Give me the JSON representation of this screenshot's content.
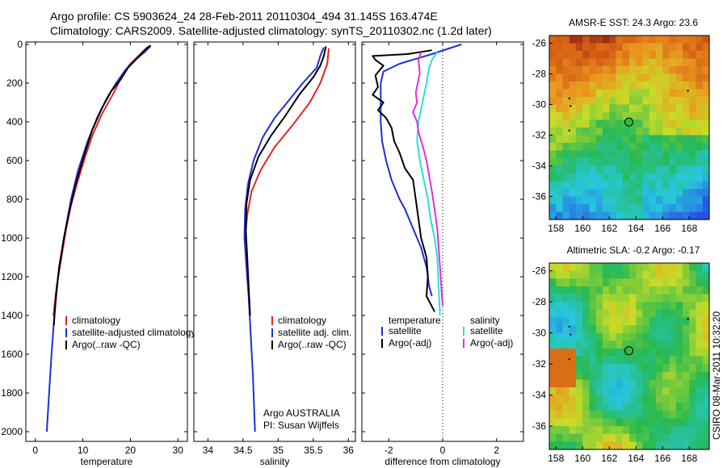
{
  "header": {
    "line1": "Argo profile: CS 5903624_24 28-Feb-2011 20110304_494 31.145S 163.474E",
    "line2": "Climatology: CARS2009. Satellite-adjusted climatology: synTS_20110302.nc (1.2d later)"
  },
  "footer_vertical": "CSIRO 08-Mar-2011 10:32:20",
  "colors": {
    "climatology": "#e8231f",
    "satellite": "#1f2fd8",
    "argo": "#000000",
    "cyan": "#29e0e0",
    "magenta": "#e02ee0"
  },
  "chart_data": [
    {
      "type": "line",
      "xlabel": "temperature",
      "ylabel": "",
      "xlim": [
        -2,
        32
      ],
      "ylim": [
        2050,
        0
      ],
      "xticks": [
        "0",
        "10",
        "20",
        "30"
      ],
      "yticks": [
        "0",
        "200",
        "400",
        "600",
        "800",
        "1000",
        "1200",
        "1400",
        "1600",
        "1800",
        "2000"
      ],
      "legend": [
        "climatology",
        "satellite-adjusted climatology",
        "Argo(..raw -QC)"
      ],
      "series": [
        {
          "name": "climatology",
          "color": "climatology",
          "points": [
            [
              23.8,
              10
            ],
            [
              22.5,
              40
            ],
            [
              20,
              100
            ],
            [
              18.5,
              150
            ],
            [
              16.5,
              250
            ],
            [
              14,
              360
            ],
            [
              12,
              470
            ],
            [
              10.5,
              580
            ],
            [
              9,
              700
            ],
            [
              7.5,
              830
            ],
            [
              6.5,
              950
            ],
            [
              5.5,
              1100
            ],
            [
              4.5,
              1250
            ],
            [
              3.8,
              1400
            ]
          ]
        },
        {
          "name": "satellite-adjusted climatology",
          "color": "satellite",
          "points": [
            [
              24.2,
              10
            ],
            [
              23,
              40
            ],
            [
              21,
              80
            ],
            [
              19,
              130
            ],
            [
              17,
              200
            ],
            [
              15,
              280
            ],
            [
              13,
              380
            ],
            [
              11,
              500
            ],
            [
              9,
              650
            ],
            [
              7.5,
              800
            ],
            [
              6,
              1000
            ],
            [
              4.8,
              1200
            ],
            [
              4,
              1400
            ],
            [
              3.4,
              1600
            ],
            [
              2.9,
              1800
            ],
            [
              2.4,
              2000
            ]
          ]
        },
        {
          "name": "Argo(..raw -QC)",
          "color": "argo",
          "points": [
            [
              24.3,
              5
            ],
            [
              23,
              30
            ],
            [
              21.5,
              70
            ],
            [
              19.5,
              120
            ],
            [
              18,
              180
            ],
            [
              16,
              240
            ],
            [
              14,
              330
            ],
            [
              12,
              440
            ],
            [
              10.3,
              570
            ],
            [
              8.5,
              720
            ],
            [
              7,
              880
            ],
            [
              6,
              1000
            ],
            [
              5,
              1150
            ],
            [
              4.3,
              1300
            ],
            [
              3.9,
              1450
            ]
          ]
        }
      ]
    },
    {
      "type": "line",
      "xlabel": "salinity",
      "ylabel": "",
      "xlim": [
        33.8,
        36.1
      ],
      "ylim": [
        2050,
        0
      ],
      "xticks": [
        "34",
        "34.5",
        "35",
        "35.5",
        "36"
      ],
      "legend": [
        "climatology",
        "satellite adj. clim.",
        "Argo(..raw -QC)"
      ],
      "annotations": [
        "Argo AUSTRALIA",
        "PI: Susan Wijffels"
      ],
      "series": [
        {
          "name": "climatology",
          "color": "climatology",
          "points": [
            [
              35.72,
              20
            ],
            [
              35.7,
              100
            ],
            [
              35.6,
              200
            ],
            [
              35.45,
              300
            ],
            [
              35.2,
              420
            ],
            [
              34.95,
              530
            ],
            [
              34.75,
              650
            ],
            [
              34.62,
              760
            ],
            [
              34.56,
              880
            ],
            [
              34.53,
              1000
            ],
            [
              34.54,
              1100
            ],
            [
              34.57,
              1250
            ],
            [
              34.6,
              1400
            ]
          ]
        },
        {
          "name": "satellite adj. clim.",
          "color": "satellite",
          "points": [
            [
              35.65,
              15
            ],
            [
              35.6,
              60
            ],
            [
              35.55,
              120
            ],
            [
              35.35,
              200
            ],
            [
              35.15,
              290
            ],
            [
              34.95,
              380
            ],
            [
              34.78,
              480
            ],
            [
              34.65,
              600
            ],
            [
              34.57,
              720
            ],
            [
              34.53,
              850
            ],
            [
              34.52,
              1000
            ],
            [
              34.55,
              1150
            ],
            [
              34.58,
              1300
            ],
            [
              34.61,
              1500
            ],
            [
              34.64,
              1700
            ],
            [
              34.66,
              1900
            ],
            [
              34.67,
              2000
            ]
          ]
        },
        {
          "name": "Argo(..raw -QC)",
          "color": "argo",
          "points": [
            [
              35.68,
              10
            ],
            [
              35.65,
              60
            ],
            [
              35.6,
              110
            ],
            [
              35.5,
              170
            ],
            [
              35.3,
              260
            ],
            [
              35.1,
              370
            ],
            [
              34.9,
              470
            ],
            [
              34.72,
              580
            ],
            [
              34.6,
              700
            ],
            [
              34.55,
              820
            ],
            [
              34.54,
              960
            ],
            [
              34.56,
              1100
            ],
            [
              34.58,
              1250
            ],
            [
              34.6,
              1400
            ]
          ]
        }
      ]
    },
    {
      "type": "line",
      "xlabel": "difference from climatology",
      "ylabel": "",
      "xlim": [
        -3,
        3
      ],
      "ylim": [
        2050,
        0
      ],
      "xticks": [
        "-2",
        "0",
        "2"
      ],
      "legend": [
        "temperature",
        "satellite",
        "Argo(-adj)",
        "salinity",
        "satellite",
        "Argo(-adj)"
      ],
      "series": [
        {
          "name": "temperature satellite",
          "color": "satellite",
          "points": [
            [
              0.7,
              0
            ],
            [
              -0.4,
              50
            ],
            [
              -1.6,
              100
            ],
            [
              -2.2,
              140
            ],
            [
              -2.3,
              200
            ],
            [
              -2.3,
              300
            ],
            [
              -2.3,
              400
            ],
            [
              -2.25,
              500
            ],
            [
              -2.1,
              600
            ],
            [
              -1.9,
              700
            ],
            [
              -1.6,
              800
            ],
            [
              -1.4,
              850
            ],
            [
              -1.1,
              950
            ],
            [
              -0.8,
              1050
            ],
            [
              -0.6,
              1150
            ],
            [
              -0.5,
              1250
            ],
            [
              -0.4,
              1300
            ]
          ]
        },
        {
          "name": "temperature Argo(-adj)",
          "color": "argo",
          "points": [
            [
              -0.4,
              30
            ],
            [
              -1.3,
              50
            ],
            [
              -2.6,
              60
            ],
            [
              -2.5,
              80
            ],
            [
              -2.2,
              110
            ],
            [
              -2.5,
              160
            ],
            [
              -2.4,
              220
            ],
            [
              -2.6,
              260
            ],
            [
              -2.2,
              300
            ],
            [
              -2.4,
              340
            ],
            [
              -2.1,
              380
            ],
            [
              -1.9,
              430
            ],
            [
              -1.8,
              500
            ],
            [
              -1.6,
              560
            ],
            [
              -1.4,
              640
            ],
            [
              -1.1,
              700
            ],
            [
              -1.0,
              800
            ],
            [
              -0.9,
              900
            ],
            [
              -0.8,
              1000
            ],
            [
              -0.6,
              1100
            ],
            [
              -0.55,
              1200
            ],
            [
              -0.6,
              1300
            ],
            [
              -0.3,
              1380
            ]
          ]
        },
        {
          "name": "salinity satellite",
          "color": "cyan",
          "points": [
            [
              -0.2,
              40
            ],
            [
              -0.4,
              80
            ],
            [
              -0.5,
              120
            ],
            [
              -0.6,
              200
            ],
            [
              -0.75,
              300
            ],
            [
              -0.9,
              400
            ],
            [
              -0.95,
              500
            ],
            [
              -0.85,
              600
            ],
            [
              -0.7,
              700
            ],
            [
              -0.55,
              800
            ],
            [
              -0.45,
              900
            ],
            [
              -0.3,
              1000
            ],
            [
              -0.2,
              1100
            ],
            [
              -0.15,
              1250
            ],
            [
              -0.1,
              1400
            ]
          ]
        },
        {
          "name": "salinity Argo(-adj)",
          "color": "magenta",
          "points": [
            [
              -0.8,
              40
            ],
            [
              -0.9,
              80
            ],
            [
              -0.85,
              150
            ],
            [
              -1.0,
              250
            ],
            [
              -0.95,
              300
            ],
            [
              -1.1,
              350
            ],
            [
              -0.95,
              400
            ],
            [
              -0.9,
              450
            ],
            [
              -0.75,
              520
            ],
            [
              -0.6,
              600
            ],
            [
              -0.5,
              680
            ],
            [
              -0.4,
              760
            ],
            [
              -0.3,
              850
            ],
            [
              -0.2,
              950
            ],
            [
              -0.15,
              1050
            ],
            [
              -0.1,
              1150
            ],
            [
              -0.05,
              1250
            ],
            [
              0.0,
              1350
            ]
          ]
        }
      ]
    },
    {
      "type": "heatmap",
      "title": "AMSR-E SST: 24.3 Argo: 23.6",
      "xlim": [
        157.5,
        169.5
      ],
      "ylim": [
        -37.5,
        -25.5
      ],
      "xticks": [
        "158",
        "160",
        "162",
        "164",
        "166",
        "168"
      ],
      "yticks": [
        "-26",
        "-28",
        "-30",
        "-32",
        "-34",
        "-36"
      ],
      "profile_location": [
        163.474,
        -31.145
      ]
    },
    {
      "type": "heatmap",
      "title": "Altimetric SLA: -0.2 Argo: -0.17",
      "xlim": [
        157.5,
        169.5
      ],
      "ylim": [
        -37.5,
        -25.5
      ],
      "xticks": [
        "158",
        "160",
        "162",
        "164",
        "166",
        "168"
      ],
      "yticks": [
        "-26",
        "-28",
        "-30",
        "-32",
        "-34",
        "-36"
      ],
      "profile_location": [
        163.474,
        -31.145
      ]
    }
  ]
}
